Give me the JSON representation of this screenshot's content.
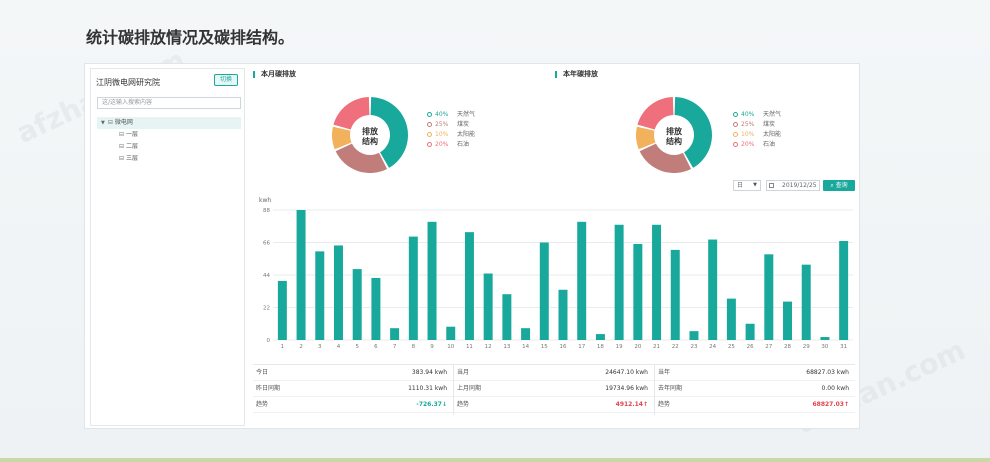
{
  "page_heading": "统计碳排放情况及碳排结构。",
  "watermark": "afzhan.com",
  "sidebar": {
    "org_name": "江阴微电网研究院",
    "switch_label": "切换",
    "search_placeholder": "这/这输入搜索内容",
    "tree": {
      "root": "微电网",
      "children": [
        "一层",
        "二层",
        "三层"
      ]
    }
  },
  "monthly": {
    "title": "本月碳排放",
    "center_label_1": "排放",
    "center_label_2": "结构",
    "legend": [
      {
        "pct": "40%",
        "name": "天然气",
        "value": 40,
        "color": "#18a99c"
      },
      {
        "pct": "25%",
        "name": "煤炭",
        "value": 25,
        "color": "#c07d7a"
      },
      {
        "pct": "10%",
        "name": "太阳能",
        "value": 10,
        "color": "#f2b25c"
      },
      {
        "pct": "20%",
        "name": "石油",
        "value": 20,
        "color": "#ef6f7c"
      }
    ]
  },
  "yearly": {
    "title": "本年碳排放",
    "center_label_1": "排放",
    "center_label_2": "结构",
    "legend": [
      {
        "pct": "40%",
        "name": "天然气",
        "value": 40,
        "color": "#18a99c"
      },
      {
        "pct": "25%",
        "name": "煤炭",
        "value": 25,
        "color": "#c07d7a"
      },
      {
        "pct": "10%",
        "name": "太阳能",
        "value": 10,
        "color": "#f2b25c"
      },
      {
        "pct": "20%",
        "name": "石油",
        "value": 20,
        "color": "#ef6f7c"
      }
    ]
  },
  "controls": {
    "period": "日",
    "date": "2019/12/25",
    "query_label": "查询"
  },
  "chart_data": {
    "type": "bar",
    "ylabel": "kwh",
    "ylim": [
      0,
      88
    ],
    "yticks": [
      "0",
      "22",
      "44",
      "66",
      "88"
    ],
    "categories": [
      "1",
      "2",
      "3",
      "4",
      "5",
      "6",
      "7",
      "8",
      "9",
      "10",
      "11",
      "12",
      "13",
      "14",
      "15",
      "16",
      "17",
      "18",
      "19",
      "20",
      "21",
      "22",
      "23",
      "24",
      "25",
      "26",
      "27",
      "28",
      "29",
      "30",
      "31"
    ],
    "values": [
      40,
      88,
      60,
      64,
      48,
      42,
      8,
      70,
      80,
      9,
      73,
      45,
      31,
      8,
      66,
      34,
      80,
      4,
      78,
      65,
      78,
      61,
      6,
      68,
      28,
      11,
      58,
      26,
      51,
      2,
      67
    ],
    "bar_color": "#18a99c",
    "grid": true
  },
  "stats": [
    {
      "label": "今日",
      "value": "383.94",
      "unit": "kwh"
    },
    {
      "label": "当月",
      "value": "24647.10",
      "unit": "kwh"
    },
    {
      "label": "当年",
      "value": "68827.03",
      "unit": "kwh"
    },
    {
      "label": "昨日同期",
      "value": "1110.31",
      "unit": "kwh"
    },
    {
      "label": "上月同期",
      "value": "19734.96",
      "unit": "kwh"
    },
    {
      "label": "去年同期",
      "value": "0.00",
      "unit": "kwh"
    },
    {
      "label": "趋势",
      "value": "-726.37↓",
      "unit": "",
      "trend": "down"
    },
    {
      "label": "趋势",
      "value": "4912.14↑",
      "unit": "",
      "trend": "up"
    },
    {
      "label": "趋势",
      "value": "68827.03↑",
      "unit": "",
      "trend": "up"
    }
  ]
}
